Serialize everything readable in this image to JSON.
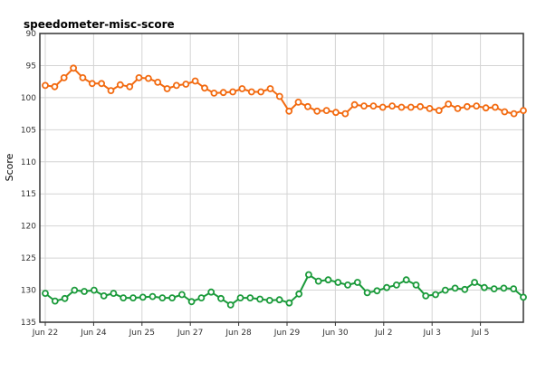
{
  "chart_data": {
    "type": "line",
    "title": "speedometer-misc-score",
    "ylabel": "Score",
    "xlabel": "",
    "ylim": [
      90,
      135
    ],
    "y_inverted": true,
    "y_ticks": [
      "90",
      "95",
      "100",
      "105",
      "110",
      "115",
      "120",
      "125",
      "130",
      "135"
    ],
    "x_ticks": [
      "Jun 22",
      "Jun 24",
      "Jun 25",
      "Jun 27",
      "Jun 28",
      "Jun 29",
      "Jun 30",
      "Jul 2",
      "Jul 3",
      "Jul 5"
    ],
    "grid": true,
    "series": [
      {
        "color": "#f26a10",
        "values": [
          98.1,
          98.3,
          96.9,
          95.4,
          96.9,
          97.8,
          97.8,
          98.9,
          98.0,
          98.3,
          96.9,
          97.0,
          97.6,
          98.6,
          98.1,
          97.9,
          97.4,
          98.5,
          99.3,
          99.2,
          99.1,
          98.6,
          99.1,
          99.1,
          98.6,
          99.8,
          102.1,
          100.7,
          101.4,
          102.1,
          102.0,
          102.3,
          102.5,
          101.1,
          101.3,
          101.3,
          101.5,
          101.3,
          101.5,
          101.5,
          101.4,
          101.7,
          102.0,
          101.0,
          101.7,
          101.4,
          101.3,
          101.6,
          101.5,
          102.2,
          102.5,
          102.0
        ]
      },
      {
        "color": "#1a9a3a",
        "values": [
          130.5,
          131.7,
          131.3,
          130.0,
          130.2,
          130.0,
          130.9,
          130.5,
          131.2,
          131.2,
          131.1,
          131.0,
          131.2,
          131.2,
          130.7,
          131.8,
          131.2,
          130.3,
          131.3,
          132.3,
          131.2,
          131.2,
          131.4,
          131.6,
          131.5,
          132.0,
          130.6,
          127.6,
          128.6,
          128.4,
          128.8,
          129.2,
          128.8,
          130.4,
          130.1,
          129.6,
          129.2,
          128.4,
          129.2,
          130.9,
          130.7,
          130.0,
          129.7,
          129.9,
          128.8,
          129.6,
          129.8,
          129.7,
          129.8,
          131.1
        ]
      }
    ]
  }
}
